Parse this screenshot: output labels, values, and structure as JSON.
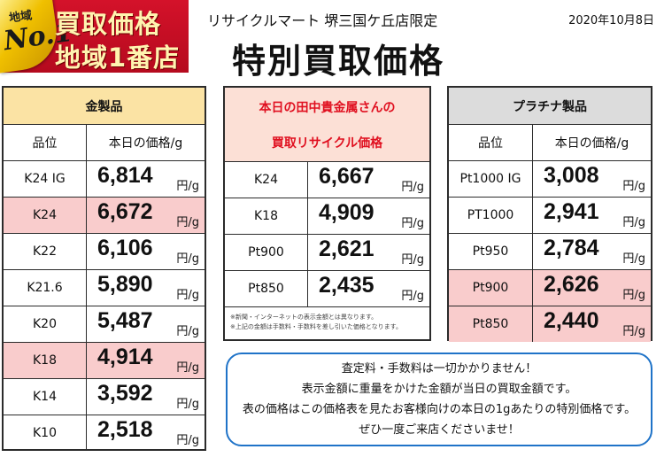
{
  "logo": {
    "badge_top": "地域",
    "badge_no": "No.1",
    "line1": "買取価格",
    "line2": "地域1番店"
  },
  "header": {
    "store": "リサイクルマート 堺三国ケ丘店限定",
    "date": "2020年10月8日",
    "title": "特別買取価格"
  },
  "unit": "円/g",
  "gold": {
    "title": "金製品",
    "col_grade": "品位",
    "col_price": "本日の価格/g",
    "rows": [
      {
        "grade": "K24 IG",
        "price": "6,814",
        "highlight": false
      },
      {
        "grade": "K24",
        "price": "6,672",
        "highlight": true
      },
      {
        "grade": "K22",
        "price": "6,106",
        "highlight": false
      },
      {
        "grade": "K21.6",
        "price": "5,890",
        "highlight": false
      },
      {
        "grade": "K20",
        "price": "5,487",
        "highlight": false
      },
      {
        "grade": "K18",
        "price": "4,914",
        "highlight": true
      },
      {
        "grade": "K14",
        "price": "3,592",
        "highlight": false
      },
      {
        "grade": "K10",
        "price": "2,518",
        "highlight": false
      }
    ]
  },
  "center": {
    "title_line1": "本日の田中貴金属さんの",
    "title_line2": "買取リサイクル価格",
    "rows": [
      {
        "grade": "K24",
        "price": "6,667"
      },
      {
        "grade": "K18",
        "price": "4,909"
      },
      {
        "grade": "Pt900",
        "price": "2,621"
      },
      {
        "grade": "Pt850",
        "price": "2,435"
      }
    ],
    "note1": "※新聞・インターネットの表示金額とは異なります。",
    "note2": "※上記の金額は手数料・手数料を差し引いた価格となります。"
  },
  "platinum": {
    "title": "プラチナ製品",
    "col_grade": "品位",
    "col_price": "本日の価格/g",
    "rows": [
      {
        "grade": "Pt1000 IG",
        "price": "3,008",
        "highlight": false
      },
      {
        "grade": "PT1000",
        "price": "2,941",
        "highlight": false
      },
      {
        "grade": "Pt950",
        "price": "2,784",
        "highlight": false
      },
      {
        "grade": "Pt900",
        "price": "2,626",
        "highlight": true
      },
      {
        "grade": "Pt850",
        "price": "2,440",
        "highlight": true
      }
    ]
  },
  "notice": {
    "line1": "査定料・手数料は一切かかりません！",
    "line2": "表示金額に重量をかけた金額が当日の買取金額です。",
    "line3": "表の価格はこの価格表を見たお客様向けの本日の1gあたりの特別価格です。",
    "line4": "ぜひ一度ご来店くださいませ！"
  }
}
